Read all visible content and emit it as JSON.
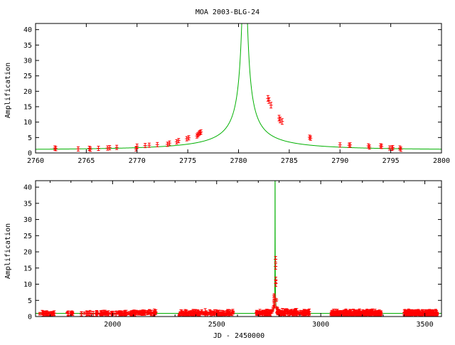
{
  "chart_data": [
    {
      "type": "line",
      "title": "MOA 2003-BLG-24",
      "xlabel": "",
      "ylabel": "Amplification",
      "xlim": [
        2760,
        2800
      ],
      "ylim": [
        0,
        42
      ],
      "x_ticks": [
        2760,
        2765,
        2770,
        2775,
        2780,
        2785,
        2790,
        2795,
        2800
      ],
      "y_ticks": [
        0,
        5,
        10,
        15,
        20,
        25,
        30,
        35,
        40
      ],
      "series": [
        {
          "kind": "model",
          "color": "#00b000",
          "model": {
            "t0": 2780.6,
            "u0": 0.012,
            "tE": 17.0,
            "baseline": 0.86
          }
        },
        {
          "kind": "points",
          "color": "#ff0000",
          "points": [
            [
              2761.9,
              1.6
            ],
            [
              2762.0,
              1.4
            ],
            [
              2764.2,
              1.3
            ],
            [
              2765.3,
              1.5
            ],
            [
              2765.4,
              1.2
            ],
            [
              2766.2,
              1.5
            ],
            [
              2767.1,
              1.6
            ],
            [
              2767.3,
              1.7
            ],
            [
              2768.0,
              1.8
            ],
            [
              2769.9,
              1.3
            ],
            [
              2770.0,
              2.2
            ],
            [
              2770.8,
              2.4
            ],
            [
              2771.2,
              2.5
            ],
            [
              2772.0,
              2.7
            ],
            [
              2773.0,
              2.8
            ],
            [
              2773.2,
              3.2
            ],
            [
              2773.9,
              3.6
            ],
            [
              2774.1,
              4.0
            ],
            [
              2774.9,
              4.6
            ],
            [
              2775.1,
              4.9
            ],
            [
              2775.9,
              5.5
            ],
            [
              2776.0,
              5.9
            ],
            [
              2776.1,
              6.3
            ],
            [
              2776.2,
              6.6
            ],
            [
              2776.3,
              6.8
            ],
            [
              2782.9,
              17.7
            ],
            [
              2783.0,
              17.0
            ],
            [
              2783.2,
              15.5
            ],
            [
              2784.0,
              11.3
            ],
            [
              2784.1,
              10.7
            ],
            [
              2784.3,
              10.2
            ],
            [
              2787.0,
              5.1
            ],
            [
              2787.1,
              4.8
            ],
            [
              2790.0,
              2.6
            ],
            [
              2790.9,
              2.5
            ],
            [
              2791.0,
              2.6
            ],
            [
              2792.8,
              2.3
            ],
            [
              2792.9,
              1.9
            ],
            [
              2794.0,
              2.3
            ],
            [
              2794.1,
              2.1
            ],
            [
              2794.9,
              1.6
            ],
            [
              2795.1,
              1.5
            ],
            [
              2795.2,
              1.7
            ],
            [
              2795.9,
              1.6
            ],
            [
              2796.0,
              1.2
            ]
          ]
        }
      ]
    },
    {
      "type": "line",
      "title": "",
      "xlabel": "JD - 2450000",
      "ylabel": "Amplification",
      "xlim": [
        1630,
        3580
      ],
      "ylim": [
        0,
        42
      ],
      "x_ticks": [
        2000,
        2500,
        3000,
        3500
      ],
      "y_ticks": [
        0,
        5,
        10,
        15,
        20,
        25,
        30,
        35,
        40
      ],
      "series": [
        {
          "kind": "model",
          "color": "#00b000",
          "model": {
            "t0": 2780.6,
            "u0": 0.012,
            "tE": 17.0,
            "baseline": 0.86
          }
        },
        {
          "kind": "points",
          "color": "#ff0000",
          "seasons": [
            {
              "range": [
                1650,
                1720
              ],
              "level": 1.0,
              "spread": 0.3,
              "count": 26
            },
            {
              "range": [
                1780,
                1810
              ],
              "level": 1.0,
              "spread": 0.2,
              "count": 10
            },
            {
              "range": [
                1850,
                1900
              ],
              "level": 0.9,
              "spread": 0.2,
              "count": 8
            },
            {
              "range": [
                1900,
                2100
              ],
              "level": 1.0,
              "spread": 0.3,
              "count": 70
            },
            {
              "range": [
                2100,
                2210
              ],
              "level": 1.2,
              "spread": 0.3,
              "count": 45
            },
            {
              "range": [
                2320,
                2580
              ],
              "level": 1.0,
              "spread": 0.6,
              "count": 120
            },
            {
              "range": [
                2690,
                2760
              ],
              "level": 1.1,
              "spread": 0.4,
              "count": 50
            },
            {
              "range": [
                2790,
                2950
              ],
              "level": 1.2,
              "spread": 0.6,
              "count": 110
            },
            {
              "range": [
                3050,
                3290
              ],
              "level": 1.0,
              "spread": 0.6,
              "count": 230
            },
            {
              "range": [
                3400,
                3560
              ],
              "level": 1.0,
              "spread": 0.5,
              "count": 170
            }
          ],
          "peak_points": [
            [
              2762,
              1.6
            ],
            [
              2766,
              1.5
            ],
            [
              2770,
              2.2
            ],
            [
              2773,
              3.0
            ],
            [
              2775,
              4.8
            ],
            [
              2776.2,
              6.6
            ],
            [
              2777,
              5.8
            ],
            [
              2778,
              4.0
            ],
            [
              2779,
              3.2
            ],
            [
              2783,
              17.7
            ],
            [
              2783.2,
              15.5
            ],
            [
              2784,
              11.3
            ],
            [
              2784.3,
              10.2
            ],
            [
              2787,
              5.1
            ],
            [
              2790,
              2.6
            ],
            [
              2793,
              2.3
            ],
            [
              2795,
              1.6
            ]
          ]
        }
      ]
    }
  ]
}
